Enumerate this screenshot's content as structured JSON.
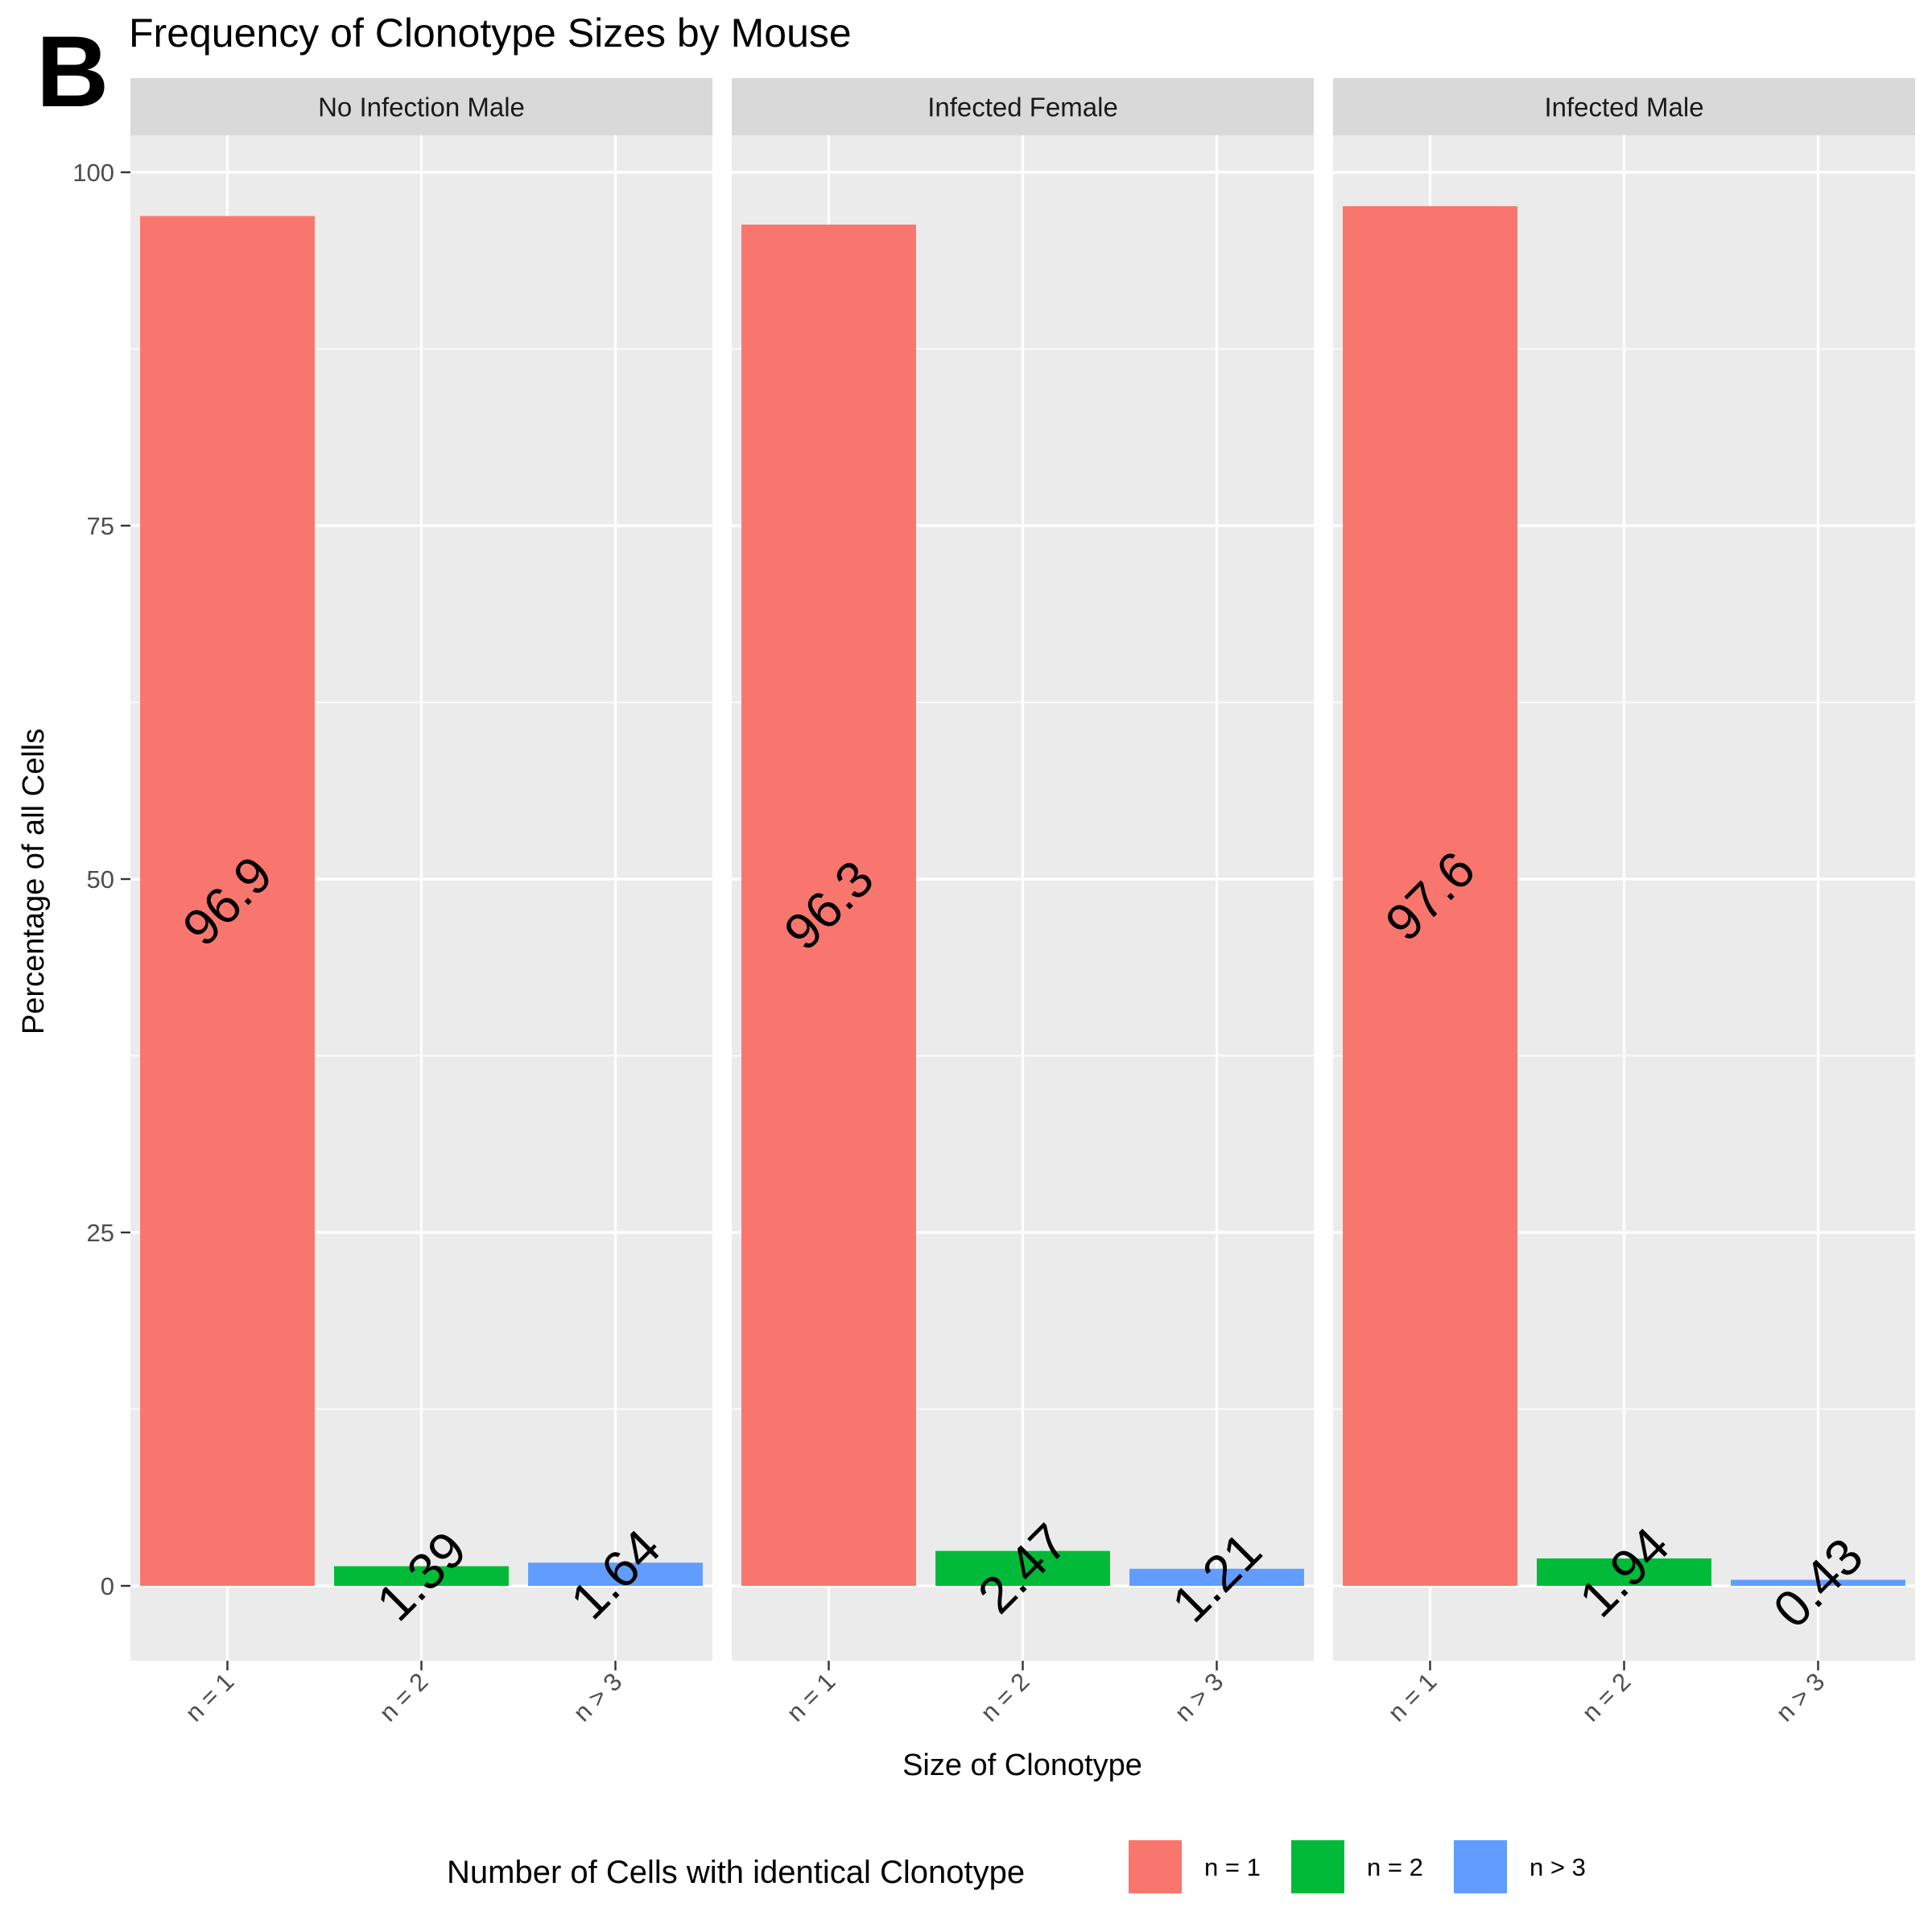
{
  "panel_letter": "B",
  "chart_data": {
    "type": "bar",
    "title": "Frequency of Clonotype Sizes by Mouse",
    "xlabel": "Size of Clonotype",
    "ylabel": "Percentage of all Cells",
    "categories": [
      "n = 1",
      "n = 2",
      "n > 3"
    ],
    "ylim": [
      -5,
      101
    ],
    "yticks": [
      0,
      25,
      50,
      75,
      100
    ],
    "grid": true,
    "facets": [
      {
        "label": "No Infection Male",
        "values": [
          96.9,
          1.39,
          1.64
        ],
        "value_labels": [
          "96.9",
          "1.39",
          "1.64"
        ]
      },
      {
        "label": "Infected Female",
        "values": [
          96.3,
          2.47,
          1.21
        ],
        "value_labels": [
          "96.3",
          "2.47",
          "1.21"
        ]
      },
      {
        "label": "Infected Male",
        "values": [
          97.6,
          1.94,
          0.43
        ],
        "value_labels": [
          "97.6",
          "1.94",
          "0.43"
        ]
      }
    ],
    "legend": {
      "title": "Number of Cells with identical Clonotype",
      "position": "bottom",
      "entries": [
        "n = 1",
        "n = 2",
        "n > 3"
      ]
    },
    "colors": [
      "#F8766D",
      "#00BA38",
      "#619CFF"
    ]
  }
}
